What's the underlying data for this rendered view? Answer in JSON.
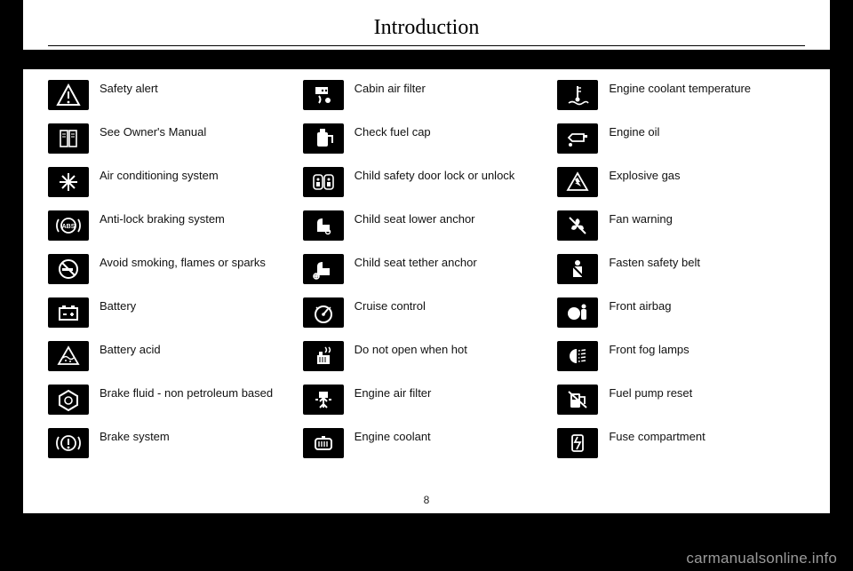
{
  "title": "Introduction",
  "page_number": "8",
  "watermark": "carmanualsonline.info",
  "columns": [
    [
      {
        "icon": "safety-alert",
        "label": "Safety alert"
      },
      {
        "icon": "owners-manual",
        "label": "See Owner's Manual"
      },
      {
        "icon": "air-conditioning",
        "label": "Air conditioning system"
      },
      {
        "icon": "abs",
        "label": "Anti-lock braking system"
      },
      {
        "icon": "no-smoking",
        "label": "Avoid smoking, flames or sparks"
      },
      {
        "icon": "battery",
        "label": "Battery"
      },
      {
        "icon": "battery-acid",
        "label": "Battery acid"
      },
      {
        "icon": "brake-fluid",
        "label": "Brake fluid - non petroleum based"
      },
      {
        "icon": "brake-system",
        "label": "Brake system"
      }
    ],
    [
      {
        "icon": "cabin-air-filter",
        "label": "Cabin air filter"
      },
      {
        "icon": "check-fuel-cap",
        "label": "Check fuel cap"
      },
      {
        "icon": "child-lock",
        "label": "Child safety door lock or unlock"
      },
      {
        "icon": "child-seat-lower",
        "label": "Child seat lower anchor"
      },
      {
        "icon": "child-seat-tether",
        "label": "Child seat tether anchor"
      },
      {
        "icon": "cruise-control",
        "label": "Cruise control"
      },
      {
        "icon": "do-not-open-hot",
        "label": "Do not open when hot"
      },
      {
        "icon": "engine-air-filter",
        "label": "Engine air filter"
      },
      {
        "icon": "engine-coolant",
        "label": "Engine coolant"
      }
    ],
    [
      {
        "icon": "coolant-temp",
        "label": "Engine coolant temperature"
      },
      {
        "icon": "engine-oil",
        "label": "Engine oil"
      },
      {
        "icon": "explosive-gas",
        "label": "Explosive gas"
      },
      {
        "icon": "fan-warning",
        "label": "Fan warning"
      },
      {
        "icon": "fasten-belt",
        "label": "Fasten safety belt"
      },
      {
        "icon": "front-airbag",
        "label": "Front airbag"
      },
      {
        "icon": "fog-lamps",
        "label": "Front fog lamps"
      },
      {
        "icon": "fuel-pump-reset",
        "label": "Fuel pump reset"
      },
      {
        "icon": "fuse-compartment",
        "label": "Fuse compartment"
      }
    ]
  ]
}
